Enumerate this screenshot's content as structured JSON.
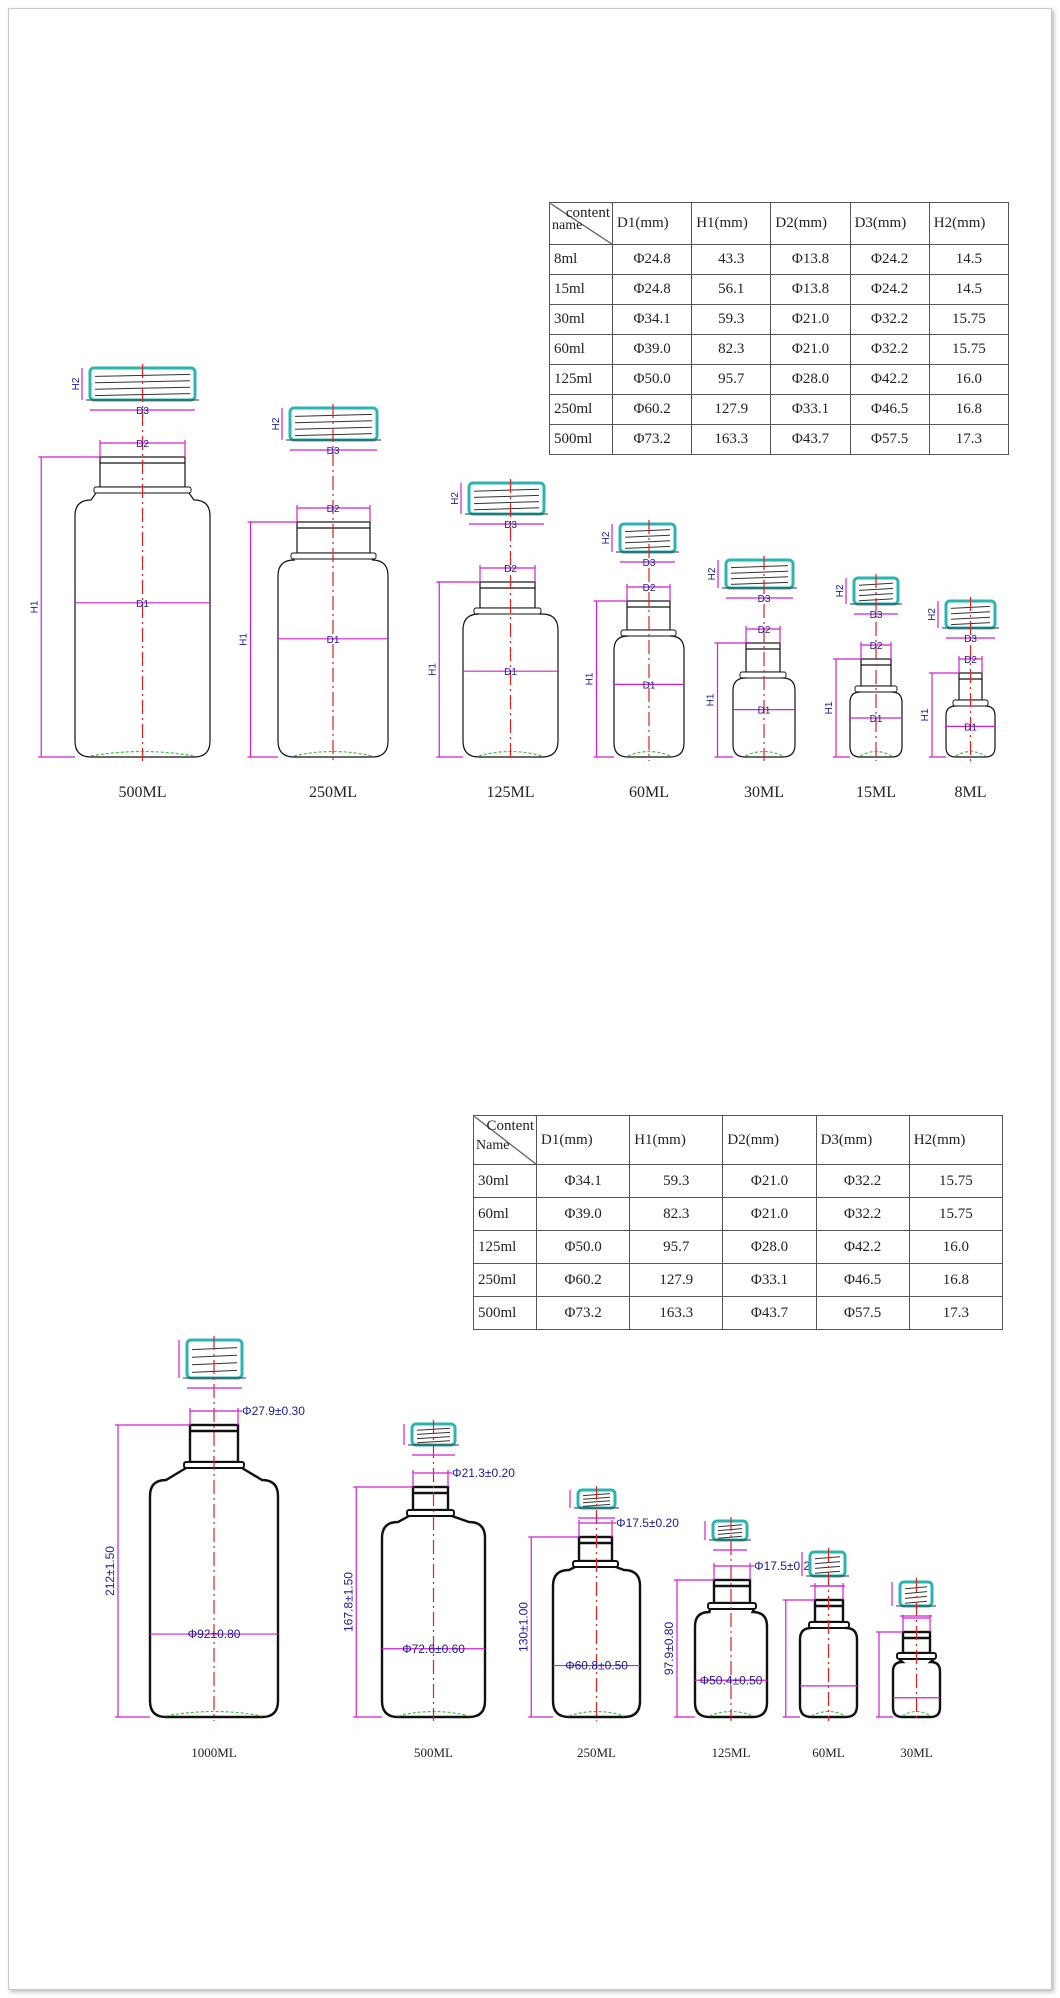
{
  "colors": {
    "outline": "#111111",
    "cap": "#2bb5b0",
    "dimension": "#d020d0",
    "centerline": "#e02020",
    "base": "#40c040",
    "dim_text": "#1a1aa0"
  },
  "top": {
    "table": {
      "diag_top": "content",
      "diag_bottom": "name",
      "columns": [
        "D1(mm)",
        "H1(mm)",
        "D2(mm)",
        "D3(mm)",
        "H2(mm)"
      ],
      "rows": [
        [
          "8ml",
          "Φ24.8",
          "43.3",
          "Φ13.8",
          "Φ24.2",
          "14.5"
        ],
        [
          "15ml",
          "Φ24.8",
          "56.1",
          "Φ13.8",
          "Φ24.2",
          "14.5"
        ],
        [
          "30ml",
          "Φ34.1",
          "59.3",
          "Φ21.0",
          "Φ32.2",
          "15.75"
        ],
        [
          "60ml",
          "Φ39.0",
          "82.3",
          "Φ21.0",
          "Φ32.2",
          "15.75"
        ],
        [
          "125ml",
          "Φ50.0",
          "95.7",
          "Φ28.0",
          "Φ42.2",
          "16.0"
        ],
        [
          "250ml",
          "Φ60.2",
          "127.9",
          "Φ33.1",
          "Φ46.5",
          "16.8"
        ],
        [
          "500ml",
          "Φ73.2",
          "163.3",
          "Φ43.7",
          "Φ57.5",
          "17.3"
        ]
      ]
    },
    "dim_labels": {
      "d1": "D1",
      "d2": "D2",
      "d3": "D3",
      "h1": "H1",
      "h2": "H2"
    },
    "bottles": [
      {
        "label": "500ML"
      },
      {
        "label": "250ML"
      },
      {
        "label": "125ML"
      },
      {
        "label": "60ML"
      },
      {
        "label": "30ML"
      },
      {
        "label": "15ML"
      },
      {
        "label": "8ML"
      }
    ]
  },
  "bottom": {
    "table": {
      "diag_top": "Content",
      "diag_bottom": "Name",
      "columns": [
        "D1(mm)",
        "H1(mm)",
        "D2(mm)",
        "D3(mm)",
        "H2(mm)"
      ],
      "rows": [
        [
          "30ml",
          "Φ34.1",
          "59.3",
          "Φ21.0",
          "Φ32.2",
          "15.75"
        ],
        [
          "60ml",
          "Φ39.0",
          "82.3",
          "Φ21.0",
          "Φ32.2",
          "15.75"
        ],
        [
          "125ml",
          "Φ50.0",
          "95.7",
          "Φ28.0",
          "Φ42.2",
          "16.0"
        ],
        [
          "250ml",
          "Φ60.2",
          "127.9",
          "Φ33.1",
          "Φ46.5",
          "16.8"
        ],
        [
          "500ml",
          "Φ73.2",
          "163.3",
          "Φ43.7",
          "Φ57.5",
          "17.3"
        ]
      ]
    },
    "bottles": [
      {
        "label": "1000ML",
        "neck": "Φ27.9±0.30",
        "height": "212±1.50",
        "body": "Φ92±0.80"
      },
      {
        "label": "500ML",
        "neck": "Φ21.3±0.20",
        "height": "167.8±1.50",
        "body": "Φ72.6±0.60"
      },
      {
        "label": "250ML",
        "neck": "Φ17.5±0.20",
        "height": "130±1.00",
        "body": "Φ60.8±0.50"
      },
      {
        "label": "125ML",
        "neck": "Φ17.5±0.20",
        "height": "97.9±0.80",
        "body": "Φ50.4±0.50"
      },
      {
        "label": "60ML"
      },
      {
        "label": "30ML"
      }
    ]
  }
}
